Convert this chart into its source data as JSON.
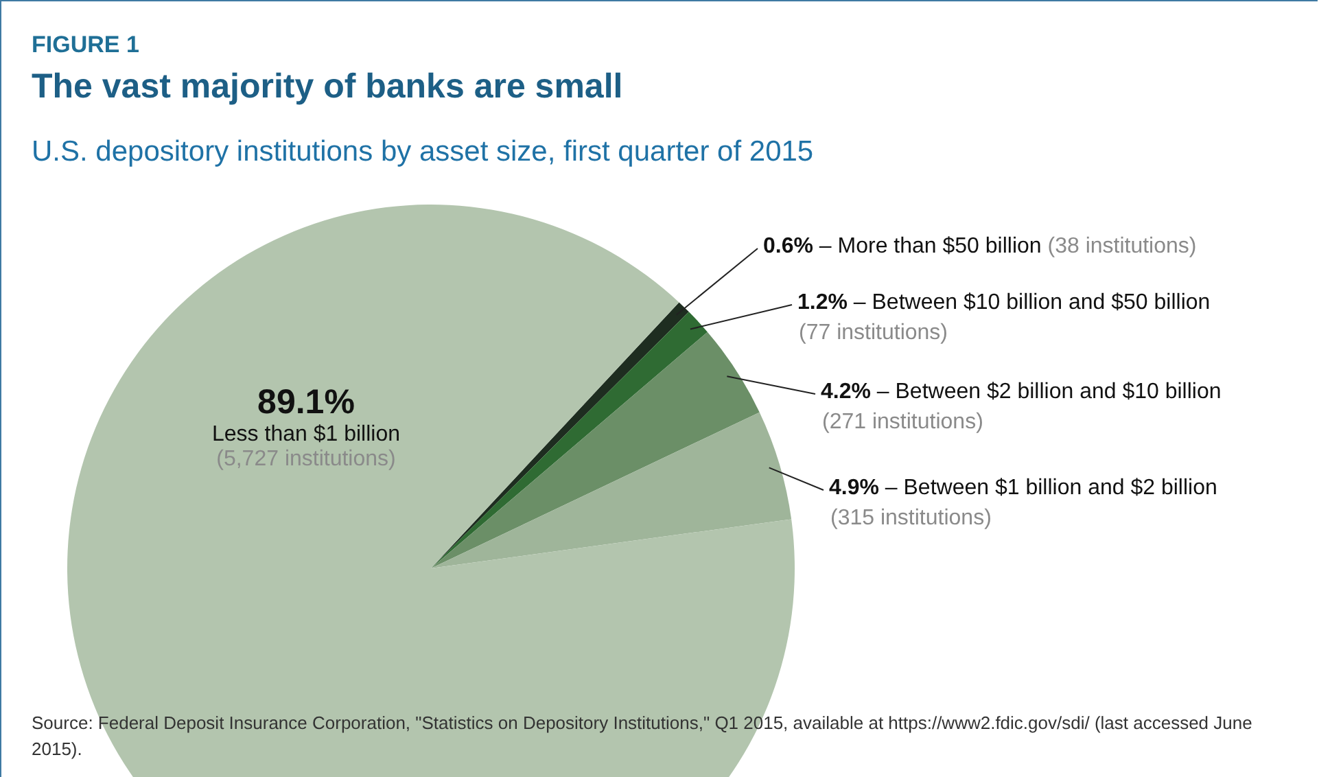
{
  "chart_data": {
    "type": "pie",
    "title": "The vast majority of banks are small",
    "subtitle": "U.S. depository institutions by asset size, first quarter of 2015",
    "categories": [
      "– More than $50 billion",
      "– Between $10 billion and $50 billion",
      "– Between $2 billion and $10 billion",
      "– Between $1 billion and $2 billion",
      "Less than $1 billion"
    ],
    "values": [
      0.6,
      1.2,
      4.2,
      4.9,
      89.1
    ],
    "value_labels": [
      "0.6%",
      "1.2%",
      "4.2%",
      "4.9%",
      "89.1%"
    ],
    "colors": [
      "#1e2d20",
      "#2f6b33",
      "#6b8f67",
      "#9fb59a",
      "#b3c5ae"
    ],
    "annotations": [
      "FIGURE 1",
      "(38 institutions)",
      "(77 institutions)",
      "(271 institutions)",
      "(315 institutions)",
      "(5,727 institutions)",
      "Source: Federal Deposit Insurance Corporation, \"Statistics on Depository Institutions,\" Q1 2015, available at https://www2.fdic.gov/sdi/ (last accessed June 2015)."
    ]
  }
}
